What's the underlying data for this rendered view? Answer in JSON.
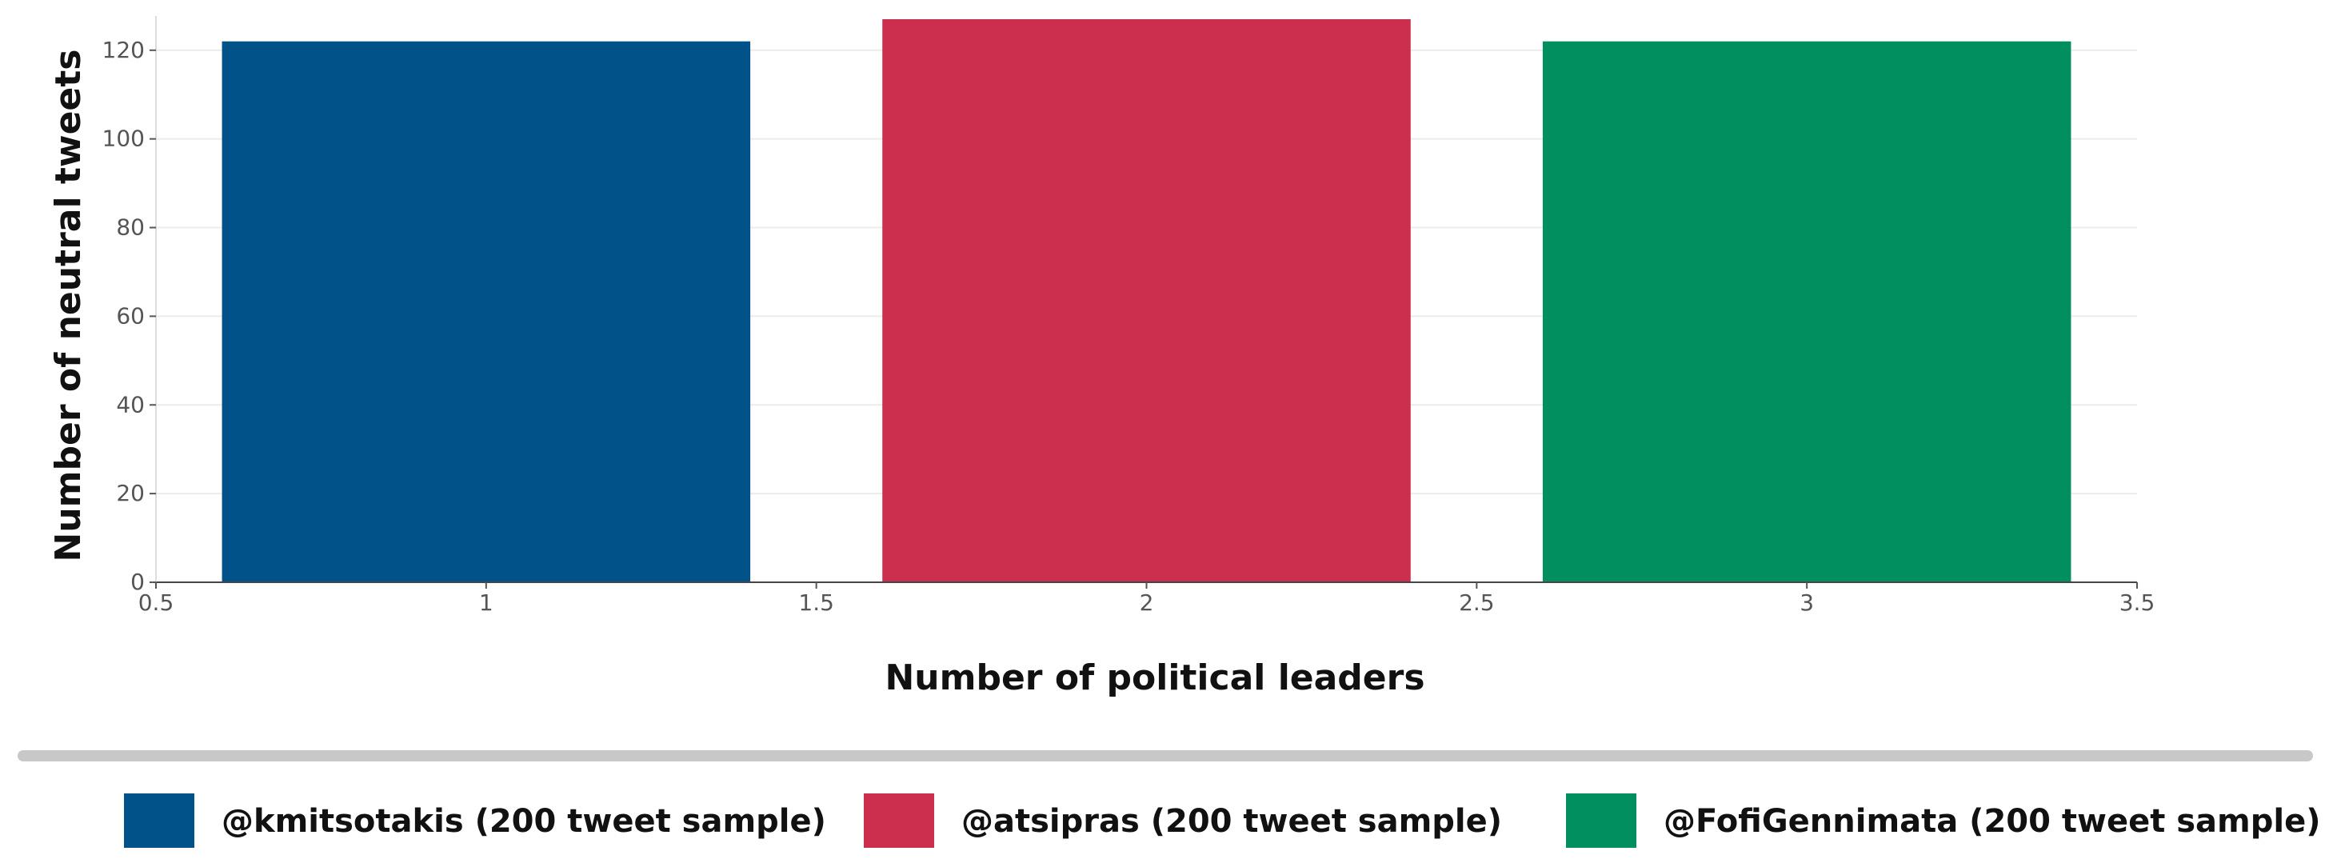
{
  "chart_data": {
    "type": "bar",
    "x": [
      1,
      2,
      3
    ],
    "values": [
      122,
      127,
      122
    ],
    "bar_width": 0.8,
    "colors": [
      "#02528a",
      "#cc2e4e",
      "#028f5f"
    ],
    "xlabel": "Number of political leaders",
    "ylabel": "Number of neutral tweets",
    "xlim": [
      0.5,
      3.5
    ],
    "ylim": [
      0,
      127
    ],
    "xticks": [
      0.5,
      1,
      1.5,
      2,
      2.5,
      3,
      3.5
    ],
    "xtick_labels": [
      "0.5",
      "1",
      "1.5",
      "2",
      "2.5",
      "3",
      "3.5"
    ],
    "yticks": [
      0,
      20,
      40,
      60,
      80,
      100,
      120
    ],
    "ytick_labels": [
      "0",
      "20",
      "40",
      "60",
      "80",
      "100",
      "120"
    ],
    "grid": true,
    "legend_position": "bottom",
    "legend": [
      "@kmitsotakis (200 tweet sample)",
      "@atsipras (200 tweet sample)",
      "@FofiGennimata (200 tweet sample)"
    ]
  }
}
